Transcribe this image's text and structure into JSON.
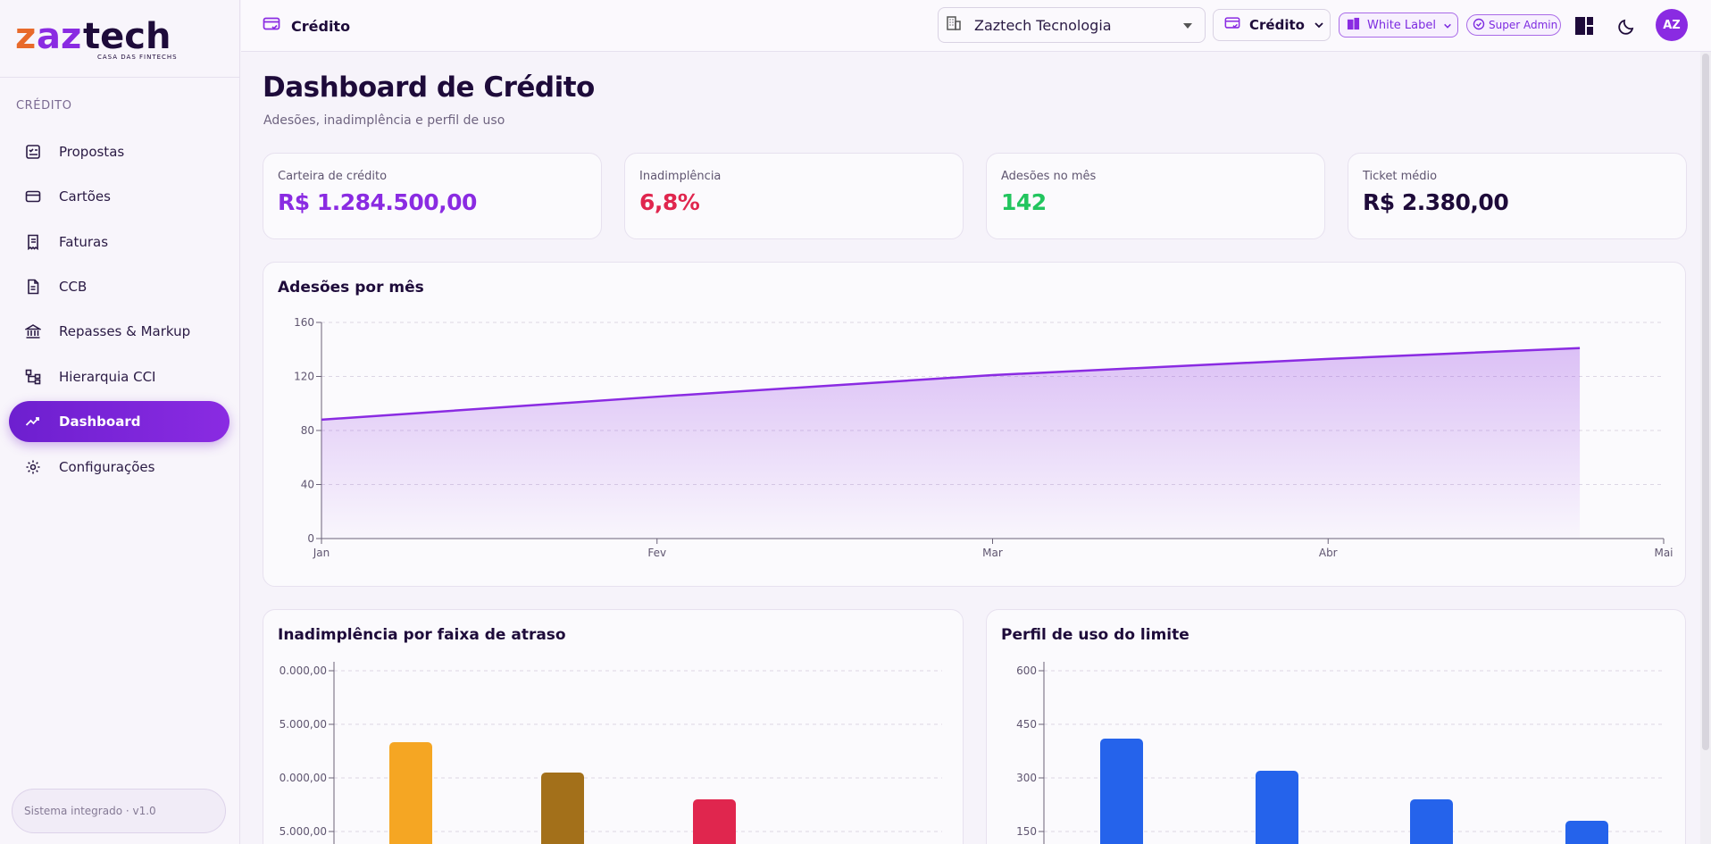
{
  "brand": {
    "logo_text": "zaztech",
    "tagline": "CASA DAS FINTECHS",
    "colors": {
      "primary": "#8a2be2",
      "accent_orange": "#e86a2b"
    }
  },
  "sidebar": {
    "section_label": "CRÉDITO",
    "items": [
      {
        "label": "Propostas",
        "icon": "checklist-icon",
        "active": false
      },
      {
        "label": "Cartões",
        "icon": "credit-card-icon",
        "active": false
      },
      {
        "label": "Faturas",
        "icon": "receipt-icon",
        "active": false
      },
      {
        "label": "CCB",
        "icon": "document-icon",
        "active": false
      },
      {
        "label": "Repasses & Markup",
        "icon": "bank-icon",
        "active": false
      },
      {
        "label": "Hierarquia CCI",
        "icon": "hierarchy-icon",
        "active": false
      },
      {
        "label": "Dashboard",
        "icon": "trend-chart-icon",
        "active": true
      },
      {
        "label": "Configurações",
        "icon": "gear-icon",
        "active": false
      }
    ],
    "footer": "Sistema integrado · v1.0"
  },
  "topbar": {
    "title": "Crédito",
    "company_select": "Zaztech Tecnologia",
    "module_select": "Crédito",
    "white_label": "White Label",
    "super_admin": "Super Admin",
    "avatar_initials": "AZ"
  },
  "page": {
    "title": "Dashboard de Crédito",
    "subtitle": "Adesões, inadimplência e perfil de uso"
  },
  "kpis": [
    {
      "label": "Carteira de crédito",
      "value": "R$ 1.284.500,00",
      "color": "#8a2be2"
    },
    {
      "label": "Inadimplência",
      "value": "6,8%",
      "color": "#e0264e"
    },
    {
      "label": "Adesões no mês",
      "value": "142",
      "color": "#22c55e"
    },
    {
      "label": "Ticket médio",
      "value": "R$ 2.380,00",
      "color": "#1e0b3a"
    }
  ],
  "chart_data": [
    {
      "type": "area",
      "title": "Adesões por mês",
      "categories": [
        "Jan",
        "Fev",
        "Mar",
        "Abr",
        "Mai"
      ],
      "series": [
        {
          "values": [
            88,
            105,
            121,
            133,
            141
          ]
        }
      ],
      "ylim": [
        0,
        160
      ],
      "yticks": [
        "0",
        "40",
        "80",
        "120",
        "160"
      ],
      "grid": true,
      "color": "#8a2be2"
    },
    {
      "type": "bar",
      "title": "Inadimplência por faixa de atraso",
      "yticks": [
        "5.000,00",
        "0.000,00",
        "5.000,00",
        "0.000,00"
      ],
      "values": [
        40000,
        31500,
        24000
      ],
      "ylim": [
        15000,
        60000
      ],
      "bar_colors": [
        "#f5a623",
        "#a3701a",
        "#e0264e"
      ],
      "grid": true
    },
    {
      "type": "bar",
      "title": "Perfil de uso do limite",
      "yticks": [
        "150",
        "300",
        "450",
        "600"
      ],
      "values": [
        410,
        320,
        240,
        180
      ],
      "ylim": [
        150,
        600
      ],
      "color": "#2563eb",
      "grid": true
    }
  ]
}
